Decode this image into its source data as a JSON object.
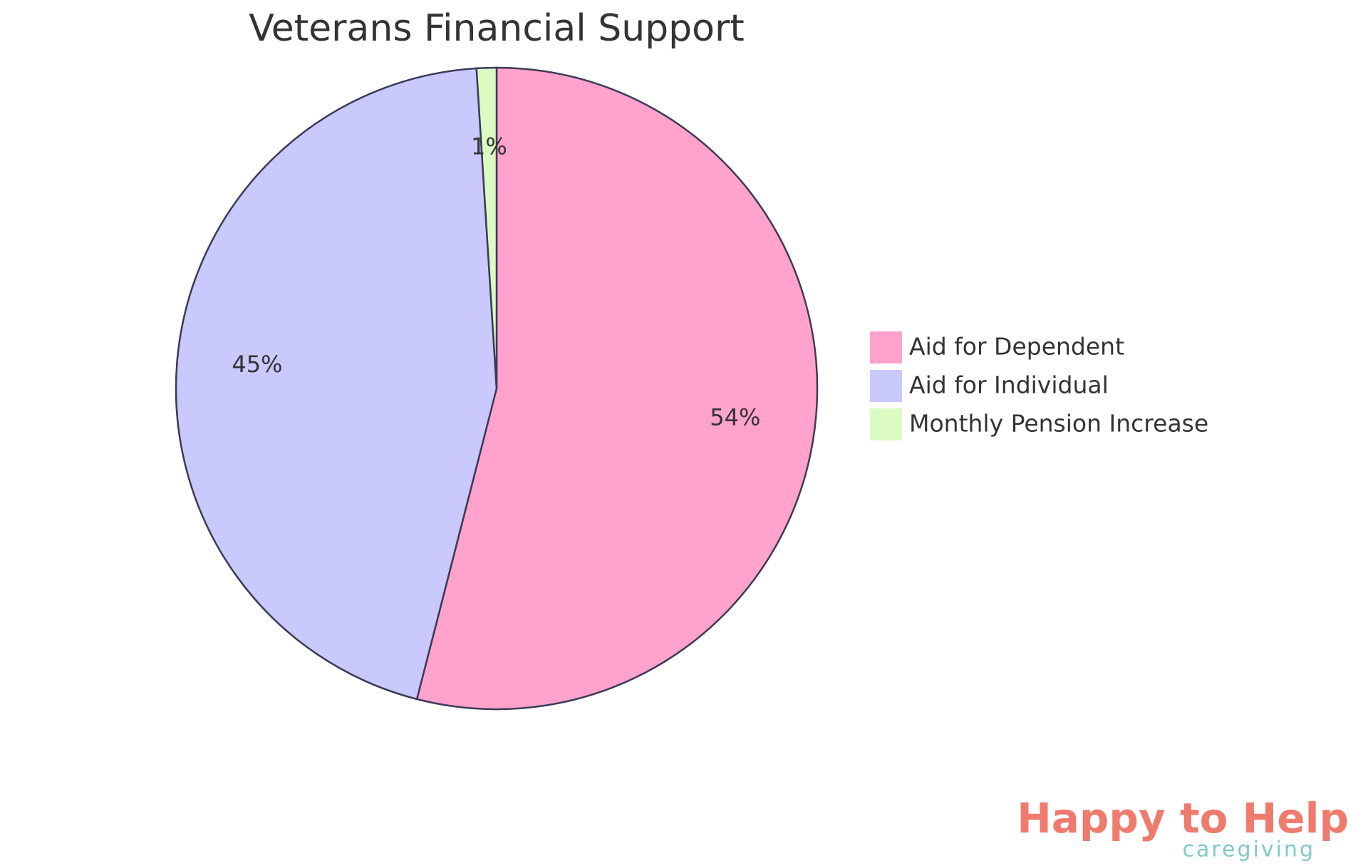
{
  "chart_data": {
    "type": "pie",
    "title": "Veterans Financial Support",
    "categories": [
      "Aid for Dependent",
      "Aid for Individual",
      "Monthly Pension Increase"
    ],
    "values": [
      54,
      45,
      1
    ],
    "value_labels": [
      "54%",
      "45%",
      "1%"
    ],
    "colors": [
      "#ffa3cd",
      "#c9c9fd",
      "#dbfbc3"
    ],
    "legend": "right"
  },
  "logo": {
    "title": "Happy to Help",
    "subtitle": "caregiving"
  }
}
